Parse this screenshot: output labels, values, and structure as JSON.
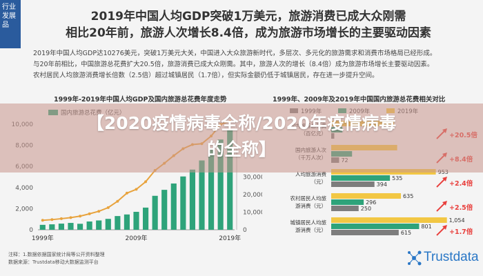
{
  "side_tab": [
    "行业",
    "发展",
    "品"
  ],
  "headline": {
    "line1": "2019年中国人均GDP突破1万美元，旅游消费已成大众刚需",
    "line2": "相比20年前，旅游人次增长8.4倍，成为旅游市场增长的主要驱动因素"
  },
  "summary": [
    "2019年中国人均GDP达10276美元，突破1万美元大关，中国进入大众旅游新时代，多层次、多元化的旅游需求和消费市场格局已经形成。",
    "与20年前相比，中国旅游总花费扩大20.5倍，旅游消费已成大众刚需。其中，旅游人次的增长（8.4倍）成为旅游市场增长主要驱动因素。",
    "农村居民人均旅游消费增长倍数（2.5倍）超过城镇居民（1.7倍），但实际金额仍低于城镇居民，存在进一步提升空间。"
  ],
  "banner": {
    "line1": "【2020疫情病毒全称/2020年疫情病毒",
    "line2": "的全称】"
  },
  "source": {
    "line1": "注释：1.数据依据国家统计局等公开资料整理",
    "line2": "数据来源：Trustdata移动大数据监测平台"
  },
  "logo_text": "Trustdata",
  "chart_data": [
    {
      "type": "bar",
      "title": "1999年-2019年中国人均GDP及国内旅游总花费年度走势",
      "legend_label": "国内旅游总花费（亿元）",
      "x_labels": [
        "1999年",
        "2009年",
        "2019年"
      ],
      "y_left_ticks": [
        "10,000",
        "8,000",
        "6,000",
        "4,000",
        "2,000",
        "0"
      ],
      "y_right_ticks": [
        "30,000",
        "20,000",
        "10,000",
        "0"
      ],
      "y_left_range": [
        0,
        10000
      ],
      "y_right_range": [
        0,
        60000
      ],
      "years": [
        1999,
        2000,
        2001,
        2002,
        2003,
        2004,
        2005,
        2006,
        2007,
        2008,
        2009,
        2010,
        2011,
        2012,
        2013,
        2014,
        2015,
        2016,
        2017,
        2018,
        2019
      ],
      "spending": [
        2800,
        3100,
        3500,
        3900,
        3400,
        4700,
        5300,
        6200,
        7800,
        8700,
        10200,
        12600,
        19300,
        22700,
        26300,
        30300,
        34200,
        39400,
        45700,
        51300,
        57300
      ],
      "gdp_per_capita": [
        900,
        960,
        1050,
        1150,
        1290,
        1510,
        1750,
        2100,
        2700,
        3470,
        3830,
        4550,
        5620,
        6300,
        7020,
        7680,
        8070,
        8150,
        8880,
        9980,
        10276
      ],
      "colors": {
        "bars": "#2ea37a",
        "line": "#e8a33d"
      }
    },
    {
      "type": "bar",
      "title": "1999年、2009年及2019年中国国内旅游总花费相关对比",
      "legend": [
        "1999年",
        "2009年",
        "2019年"
      ],
      "categories": [
        "国内旅游总花费（百亿元）",
        "国内旅游人次（千万人次）",
        "人均旅游消费（元）",
        "农村居民人均旅游消费（元）",
        "城镇居民人均旅游消费（元）"
      ],
      "category_labels": [
        [
          "国内旅游总花费",
          "（百亿元）"
        ],
        [
          "国内旅游人次",
          "（千万人次）"
        ],
        [
          "人均旅游消费",
          "（元）"
        ],
        [
          "农村居民人均旅",
          "游消费（元）"
        ],
        [
          "城镇居民人均旅",
          "游消费（元）"
        ]
      ],
      "series": [
        {
          "name": "2019年",
          "values": [
            573,
            601,
            953,
            635,
            1054
          ]
        },
        {
          "name": "2009年",
          "values": [
            102,
            190,
            535,
            296,
            801
          ]
        },
        {
          "name": "1999年",
          "values": [
            28,
            72,
            394,
            250,
            615
          ]
        }
      ],
      "value_labels": [
        [
          "",
          "",
          "953",
          "635",
          "1,054"
        ],
        [
          "",
          "",
          "535",
          "296",
          "801"
        ],
        [
          "",
          "72",
          "394",
          "250",
          "615"
        ]
      ],
      "growth": [
        "+20.5倍",
        "+8.4倍",
        "+2.4倍",
        "+2.5倍",
        "+1.7倍"
      ],
      "xlim": [
        0,
        1100
      ],
      "colors": {
        "2019年": "#f2c744",
        "2009年": "#2ea37a",
        "1999年": "#7d7d7d",
        "arrow": "#e8403d"
      }
    }
  ]
}
